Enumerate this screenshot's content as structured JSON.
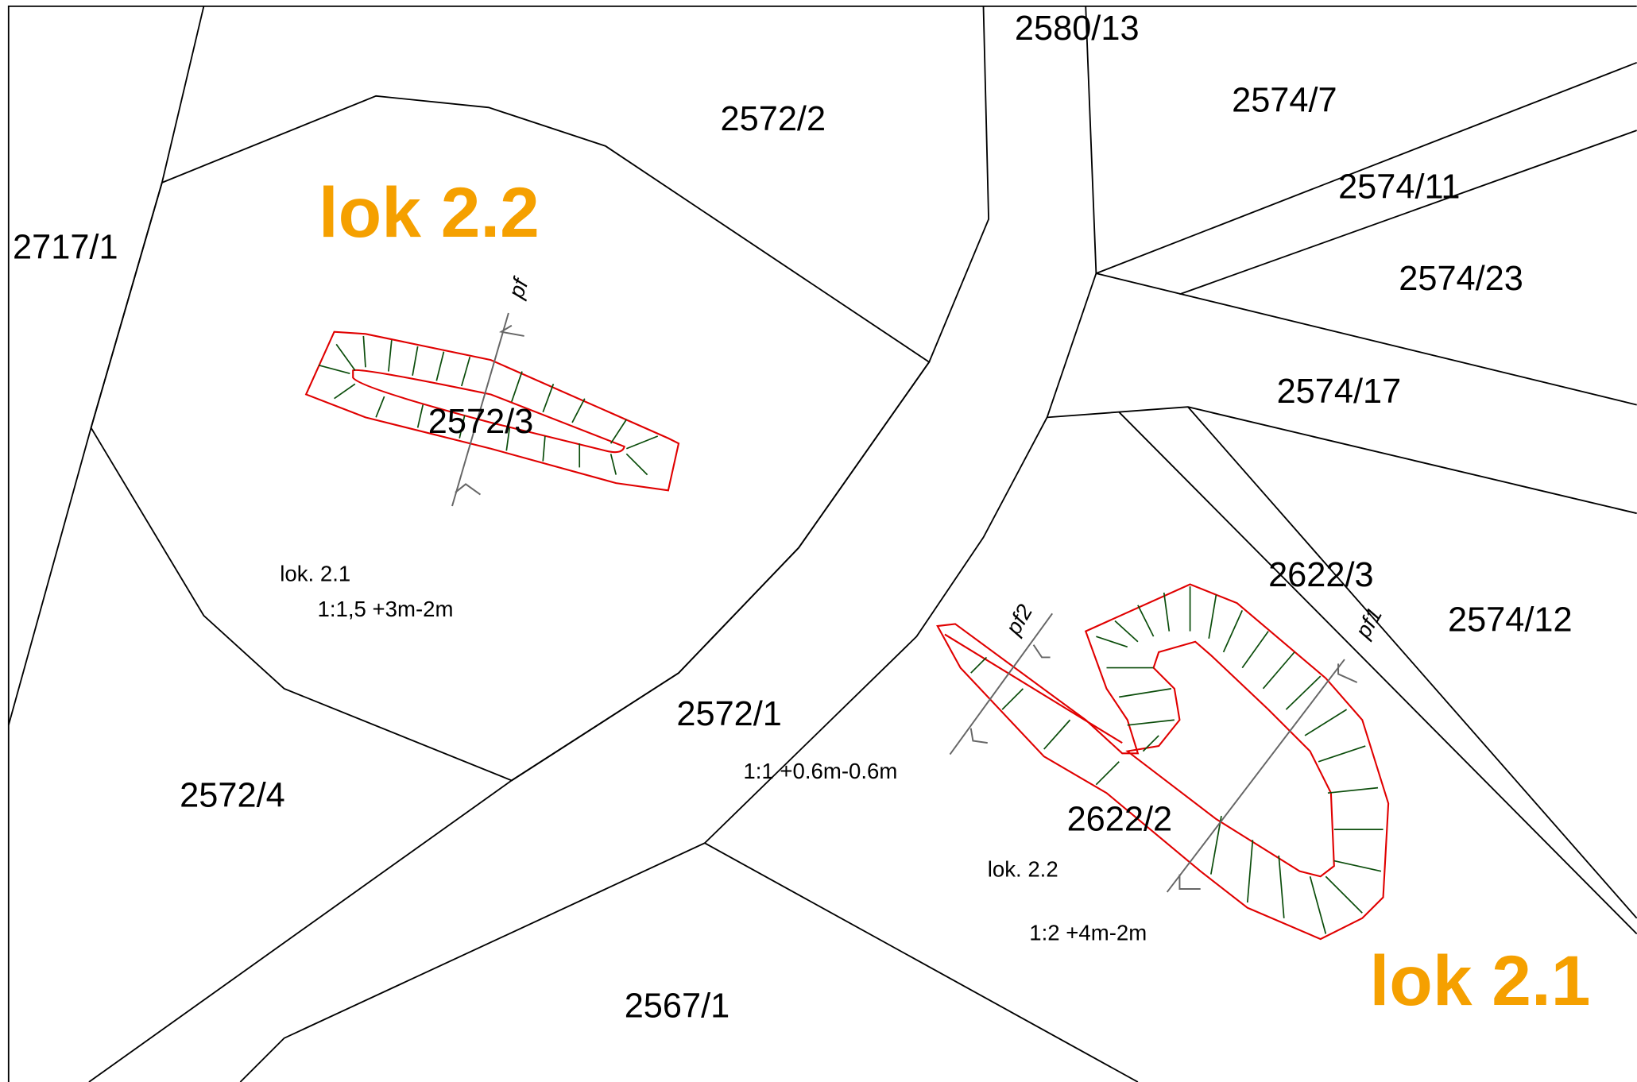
{
  "parcels": [
    "2580/13",
    "2574/7",
    "2572/2",
    "2574/11",
    "2717/1",
    "2574/23",
    "2574/17",
    "2572/3",
    "2622/3",
    "2574/12",
    "2572/1",
    "2572/4",
    "2622/2",
    "2567/1"
  ],
  "localities": [
    "lok 2.2",
    "lok 2.1"
  ],
  "annotations": [
    "lok. 2.1",
    "1:1,5 +3m-2m",
    "1:1 +0.6m-0.6m",
    "lok. 2.2",
    "1:2 +4m-2m"
  ],
  "profiles": [
    "pf",
    "pf2",
    "pf1"
  ]
}
